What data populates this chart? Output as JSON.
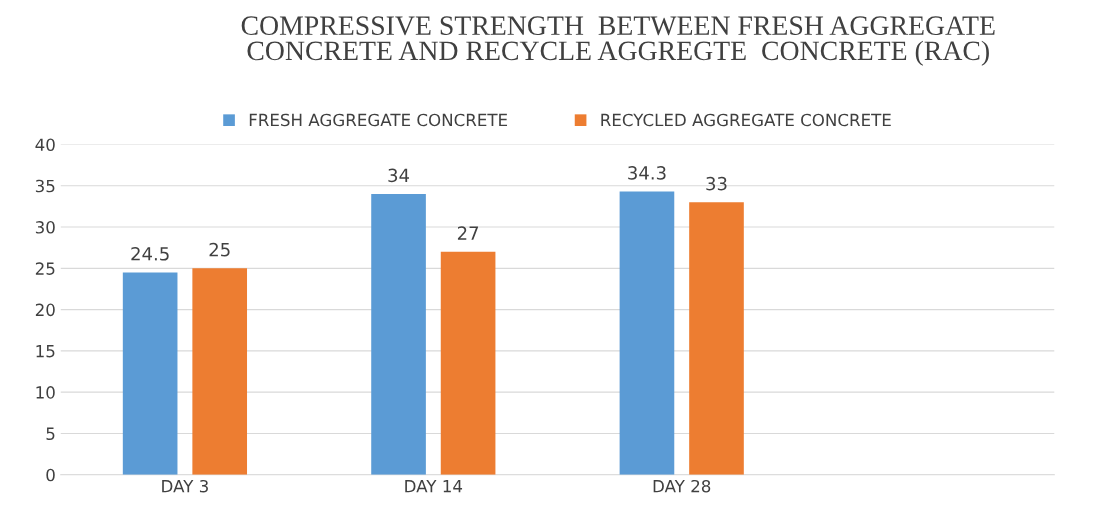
{
  "chart_data": {
    "type": "bar",
    "title": "COMPRESSIVE STRENGTH  BETWEEN FRESH AGGREGATE\nCONCRETE AND RECYCLE AGGREGTE  CONCRETE (RAC)",
    "categories": [
      "DAY 3",
      "DAY 14",
      "DAY 28",
      null
    ],
    "series": [
      {
        "name": "FRESH AGGREGATE CONCRETE",
        "color": "#5b9bd5",
        "values": [
          24.5,
          34,
          34.3,
          null
        ]
      },
      {
        "name": "RECYCLED AGGREGATE CONCRETE",
        "color": "#ed7d31",
        "values": [
          25,
          27,
          33,
          null
        ]
      }
    ],
    "ylim": [
      0,
      40
    ],
    "yticks": [
      0,
      5,
      10,
      15,
      20,
      25,
      30,
      35,
      40
    ],
    "grid": "y",
    "legend": "top",
    "data_labels": true
  }
}
